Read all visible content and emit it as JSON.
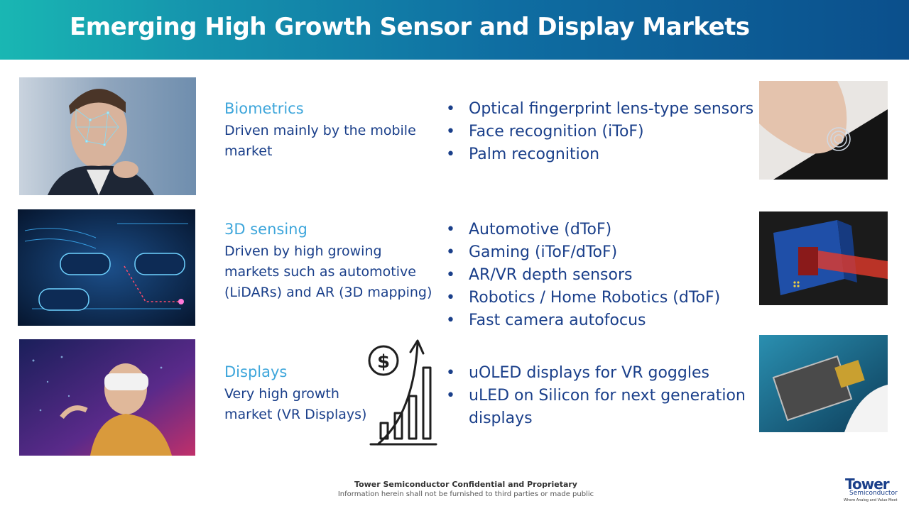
{
  "header": {
    "title": "Emerging High Growth Sensor and Display Markets"
  },
  "sections": [
    {
      "title": "Biometrics",
      "description_lines": [
        "Driven mainly by the mobile",
        "market"
      ],
      "bullets": [
        "Optical fingerprint lens-type sensors",
        "Face recognition (iToF)",
        "Palm recognition"
      ]
    },
    {
      "title": "3D sensing",
      "description_lines": [
        "Driven by high growing",
        "markets such as automotive",
        "(LiDARs) and AR (3D mapping)"
      ],
      "bullets": [
        "Automotive (dToF)",
        "Gaming (iToF/dToF)",
        "AR/VR depth sensors",
        "Robotics / Home Robotics  (dToF)",
        "Fast camera autofocus"
      ]
    },
    {
      "title": "Displays",
      "description_lines": [
        "Very high growth",
        "market (VR Displays)"
      ],
      "bullets": [
        "uOLED displays for VR goggles",
        "uLED on Silicon for next generation",
        "displays"
      ]
    }
  ],
  "footer": {
    "line1": "Tower Semiconductor Confidential and Proprietary",
    "line2": "Information herein shall not be furnished to third parties or made public"
  },
  "logo": {
    "name": "Tower",
    "sub": "Semiconductor",
    "tagline": "Where Analog and Value Meet"
  },
  "icons": {
    "growth": "dollar-growth-chart-icon"
  },
  "colors": {
    "header_start": "#19b7b3",
    "header_end": "#0b4f8c",
    "section_title": "#3ea6db",
    "body_text": "#1a3f8a"
  }
}
